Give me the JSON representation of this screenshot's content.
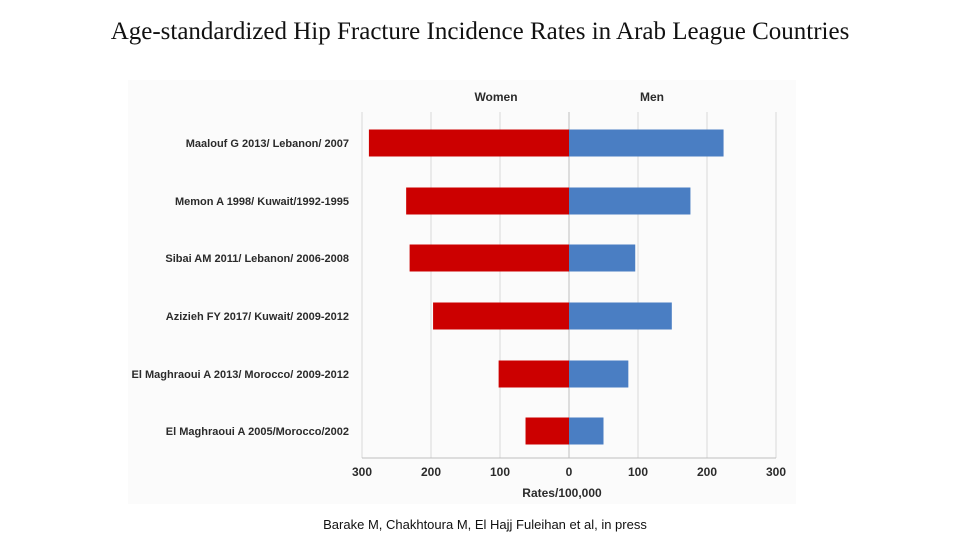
{
  "slide": {
    "title": "Age-standardized Hip Fracture Incidence Rates in Arab League Countries",
    "citation": "Barake M, Chakhtoura M, El Hajj Fuleihan et al, in press"
  },
  "colors": {
    "women": "#cc0000",
    "men": "#4a7ec3",
    "grid": "#d9d9d9",
    "axis_line": "#bfbfbf"
  },
  "chart_data": {
    "type": "bar",
    "orientation": "horizontal",
    "layout": "butterfly",
    "title": "Age-standardized Hip Fracture Incidence Rates in Arab League Countries",
    "xlabel": "Rates/100,000",
    "ylabel": "",
    "xlim": [
      -300,
      300
    ],
    "x_ticks": [
      -300,
      -200,
      -100,
      0,
      100,
      200,
      300
    ],
    "x_tick_labels": [
      "300",
      "200",
      "100",
      "0",
      "100",
      "200",
      "300"
    ],
    "grid": true,
    "categories": [
      "Maalouf G 2013/ Lebanon/ 2007",
      "Memon A 1998/ Kuwait/1992-1995",
      "Sibai AM 2011/ Lebanon/ 2006-2008",
      "Azizieh FY 2017/ Kuwait/ 2009-2012",
      "El Maghraoui A 2013/ Morocco/ 2009-2012",
      "El Maghraoui A 2005/Morocco/2002"
    ],
    "series": [
      {
        "name": "Women",
        "side": "left",
        "values": [
          290,
          236,
          231,
          197,
          102,
          63
        ]
      },
      {
        "name": "Men",
        "side": "right",
        "values": [
          224,
          176,
          96,
          149,
          86,
          50
        ]
      }
    ]
  }
}
